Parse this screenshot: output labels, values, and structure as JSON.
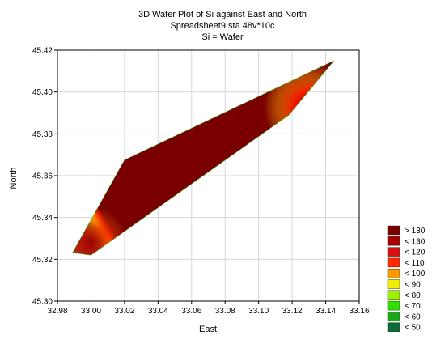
{
  "chart_data": {
    "type": "contour",
    "title": "3D Wafer Plot of Si against East and North",
    "subtitle": "Spreadsheet9.sta 48v*10c",
    "subtitle2": "Si = Wafer",
    "xlabel": "East",
    "ylabel": "North",
    "xlim": [
      32.98,
      33.16
    ],
    "ylim": [
      45.3,
      45.42
    ],
    "x_ticks": [
      "32.98",
      "33.00",
      "33.02",
      "33.04",
      "33.06",
      "33.08",
      "33.10",
      "33.12",
      "33.14",
      "33.16"
    ],
    "y_ticks": [
      "45.30",
      "45.32",
      "45.34",
      "45.36",
      "45.38",
      "45.40",
      "45.42"
    ],
    "grid": true,
    "legend_position": "bottom-right",
    "outline": [
      [
        32.989,
        45.3232
      ],
      [
        33.02,
        45.3675
      ],
      [
        33.145,
        45.415
      ],
      [
        33.118,
        45.389
      ],
      [
        33.0,
        45.322
      ]
    ],
    "legend": [
      {
        "label": "> 130",
        "color": "#7a0000"
      },
      {
        "label": "< 130",
        "color": "#a80000"
      },
      {
        "label": "< 120",
        "color": "#d81010"
      },
      {
        "label": "< 110",
        "color": "#ff2a00"
      },
      {
        "label": "< 100",
        "color": "#ff9a00"
      },
      {
        "label": "< 90",
        "color": "#f2ee00"
      },
      {
        "label": "< 80",
        "color": "#9cf000"
      },
      {
        "label": "< 70",
        "color": "#2fe000"
      },
      {
        "label": "< 60",
        "color": "#1aa81a"
      },
      {
        "label": "< 50",
        "color": "#0b6b3a"
      }
    ]
  }
}
